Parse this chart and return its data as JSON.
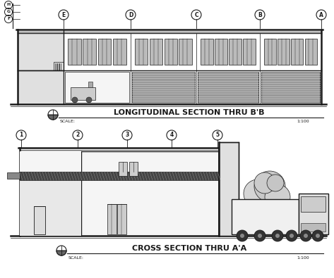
{
  "bg_color": "#ffffff",
  "line_color": "#1a1a1a",
  "title1": "LONGITUDINAL SECTION THRU B'B",
  "title2": "CROSS SECTION THRU A'A",
  "scale_label": "SCALE:",
  "scale_value1": "1:100",
  "scale_value2": "1:100",
  "top_labels": [
    "E",
    "D",
    "C",
    "B",
    "A"
  ],
  "bottom_labels": [
    "1",
    "2",
    "3",
    "4",
    "5"
  ],
  "left_labels": [
    "H",
    "G",
    "F"
  ],
  "fig_width": 4.73,
  "fig_height": 3.95,
  "dpi": 100
}
